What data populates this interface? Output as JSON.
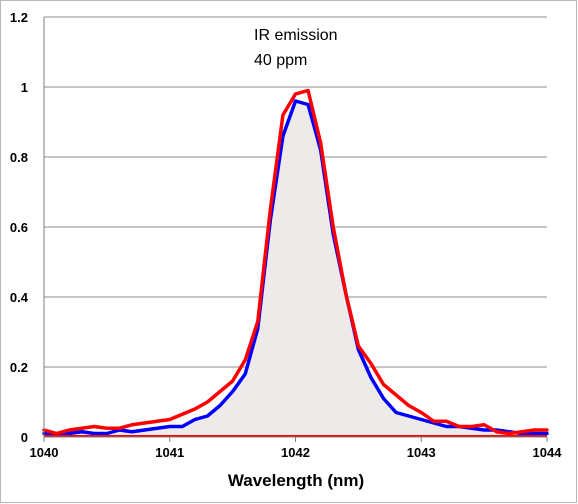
{
  "chart_data": {
    "type": "line",
    "xlabel": "Wavelength (nm)",
    "ylabel": "",
    "xlim": [
      1040,
      1044
    ],
    "ylim": [
      0,
      1.2
    ],
    "x_ticks": [
      "1040",
      "1041",
      "1042",
      "1043",
      "1044"
    ],
    "y_ticks": [
      "0",
      "0.2",
      "0.4",
      "0.6",
      "0.8",
      "1",
      "1.2"
    ],
    "grid": true,
    "legend": "none",
    "annotations": [
      "IR emission",
      "40 ppm"
    ],
    "shaded_area_color": "#eeeaea",
    "series": [
      {
        "color": "#0000ff",
        "x": [
          1040.0,
          1040.1,
          1040.2,
          1040.3,
          1040.4,
          1040.5,
          1040.6,
          1040.7,
          1040.8,
          1040.9,
          1041.0,
          1041.1,
          1041.2,
          1041.3,
          1041.4,
          1041.5,
          1041.6,
          1041.7,
          1041.8,
          1041.9,
          1042.0,
          1042.1,
          1042.2,
          1042.3,
          1042.4,
          1042.5,
          1042.6,
          1042.7,
          1042.8,
          1042.9,
          1043.0,
          1043.1,
          1043.2,
          1043.3,
          1043.4,
          1043.5,
          1043.6,
          1043.7,
          1043.8,
          1043.9,
          1044.0
        ],
        "values": [
          0.01,
          0.01,
          0.01,
          0.015,
          0.01,
          0.01,
          0.02,
          0.015,
          0.02,
          0.025,
          0.03,
          0.03,
          0.05,
          0.06,
          0.09,
          0.13,
          0.18,
          0.31,
          0.62,
          0.86,
          0.96,
          0.95,
          0.82,
          0.58,
          0.41,
          0.25,
          0.17,
          0.11,
          0.07,
          0.06,
          0.05,
          0.04,
          0.03,
          0.03,
          0.025,
          0.02,
          0.02,
          0.015,
          0.01,
          0.01,
          0.01
        ]
      },
      {
        "color": "#ff0000",
        "x": [
          1040.0,
          1040.1,
          1040.2,
          1040.3,
          1040.4,
          1040.5,
          1040.6,
          1040.7,
          1040.8,
          1040.9,
          1041.0,
          1041.1,
          1041.2,
          1041.3,
          1041.4,
          1041.5,
          1041.6,
          1041.7,
          1041.8,
          1041.9,
          1042.0,
          1042.1,
          1042.2,
          1042.3,
          1042.4,
          1042.5,
          1042.6,
          1042.7,
          1042.8,
          1042.9,
          1043.0,
          1043.1,
          1043.2,
          1043.3,
          1043.4,
          1043.5,
          1043.6,
          1043.7,
          1043.8,
          1043.9,
          1044.0
        ],
        "values": [
          0.02,
          0.01,
          0.02,
          0.025,
          0.03,
          0.025,
          0.025,
          0.035,
          0.04,
          0.045,
          0.05,
          0.065,
          0.08,
          0.1,
          0.13,
          0.16,
          0.22,
          0.33,
          0.65,
          0.92,
          0.98,
          0.99,
          0.84,
          0.6,
          0.41,
          0.26,
          0.21,
          0.15,
          0.12,
          0.09,
          0.07,
          0.045,
          0.045,
          0.03,
          0.03,
          0.035,
          0.015,
          0.01,
          0.015,
          0.02,
          0.02
        ]
      }
    ]
  }
}
